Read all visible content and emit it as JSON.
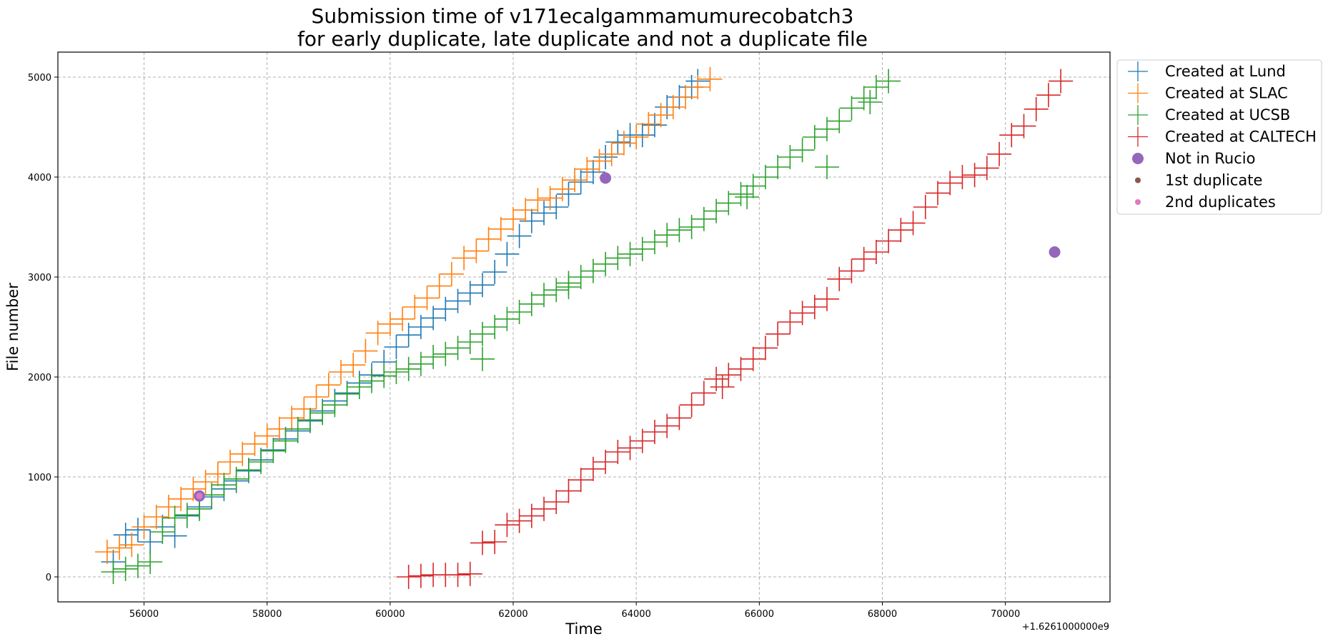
{
  "chart_data": {
    "type": "scatter",
    "title_line1": "Submission time of v171ecalgammamumurecobatch3",
    "title_line2": "for early duplicate, late duplicate and not a duplicate file",
    "xlabel": "Time",
    "ylabel": "File number",
    "x_offset_label": "+1.6261000000e9",
    "x_offset": 1626100000,
    "xlim": [
      54600,
      71700
    ],
    "ylim": [
      -250,
      5250
    ],
    "x_ticks": [
      56000,
      58000,
      60000,
      62000,
      64000,
      66000,
      68000,
      70000
    ],
    "y_ticks": [
      0,
      1000,
      2000,
      3000,
      4000,
      5000
    ],
    "grid": true,
    "legend_position": "outside-top-right",
    "colors": {
      "Lund": "#1f77b4",
      "SLAC": "#ff7f0e",
      "UCSB": "#2ca02c",
      "CALTECH": "#d62728",
      "not_in_rucio": "#9467bd",
      "first_duplicate": "#8c564b",
      "second_duplicate": "#e377c2"
    },
    "series": [
      {
        "name": "Created at Lund",
        "marker": "plus",
        "color": "#1f77b4",
        "x": [
          55500,
          55700,
          55900,
          56100,
          56300,
          56500,
          56700,
          56900,
          57100,
          57300,
          57500,
          57700,
          57900,
          58100,
          58300,
          58500,
          58700,
          58900,
          59100,
          59300,
          59500,
          59700,
          59900,
          60100,
          60300,
          60500,
          60700,
          60900,
          61100,
          61300,
          61500,
          61700,
          61900,
          62100,
          62300,
          62500,
          62700,
          62900,
          63100,
          63300,
          63500,
          63700,
          63900,
          64100,
          64300,
          64500,
          64700,
          64900,
          65000
        ],
        "y": [
          150,
          420,
          470,
          350,
          500,
          410,
          610,
          700,
          800,
          880,
          960,
          1060,
          1170,
          1270,
          1380,
          1460,
          1560,
          1660,
          1760,
          1840,
          1940,
          2020,
          2150,
          2300,
          2420,
          2500,
          2590,
          2680,
          2760,
          2840,
          2920,
          3050,
          3230,
          3410,
          3560,
          3640,
          3700,
          3830,
          3950,
          4050,
          4200,
          4350,
          4420,
          4420,
          4520,
          4700,
          4800,
          4900,
          4960
        ]
      },
      {
        "name": "Created at SLAC",
        "marker": "plus",
        "color": "#ff7f0e",
        "x": [
          55400,
          55600,
          55800,
          56000,
          56200,
          56400,
          56600,
          56800,
          57000,
          57200,
          57400,
          57600,
          57800,
          58000,
          58200,
          58400,
          58600,
          58800,
          59000,
          59200,
          59400,
          59600,
          59800,
          60000,
          60200,
          60400,
          60600,
          60800,
          61000,
          61200,
          61400,
          61600,
          61800,
          62000,
          62200,
          62400,
          62600,
          62800,
          63000,
          63200,
          63400,
          63600,
          63800,
          64000,
          64200,
          64400,
          64600,
          64800,
          65000,
          65200
        ],
        "y": [
          250,
          290,
          320,
          500,
          600,
          700,
          780,
          880,
          950,
          1030,
          1150,
          1230,
          1330,
          1410,
          1480,
          1590,
          1680,
          1800,
          1920,
          2050,
          2120,
          2260,
          2440,
          2530,
          2580,
          2700,
          2790,
          2910,
          3030,
          3190,
          3260,
          3380,
          3480,
          3580,
          3670,
          3770,
          3790,
          3880,
          3970,
          4080,
          4160,
          4230,
          4340,
          4400,
          4530,
          4620,
          4700,
          4800,
          4900,
          4980
        ]
      },
      {
        "name": "Created at UCSB",
        "marker": "plus",
        "color": "#2ca02c",
        "x": [
          55500,
          55700,
          55900,
          56100,
          56300,
          56500,
          56700,
          56900,
          57100,
          57300,
          57500,
          57700,
          57900,
          58100,
          58300,
          58500,
          58700,
          58900,
          59100,
          59300,
          59500,
          59700,
          59900,
          60100,
          60300,
          60500,
          60700,
          60900,
          61100,
          61300,
          61500,
          61700,
          61900,
          62100,
          62300,
          62500,
          62700,
          62900,
          63100,
          63300,
          63500,
          63700,
          63900,
          64100,
          64300,
          64500,
          64700,
          64900,
          65100,
          65300,
          65500,
          65700,
          65900,
          66100,
          66300,
          66500,
          66700,
          66900,
          67100,
          67300,
          67500,
          67700,
          67900,
          68100,
          61500,
          62900,
          65800,
          67100,
          67800
        ],
        "y": [
          50,
          80,
          110,
          150,
          450,
          590,
          620,
          680,
          820,
          920,
          980,
          1070,
          1150,
          1260,
          1360,
          1480,
          1570,
          1640,
          1720,
          1830,
          1900,
          1960,
          2010,
          2050,
          2080,
          2130,
          2200,
          2230,
          2290,
          2350,
          2430,
          2500,
          2580,
          2650,
          2730,
          2820,
          2870,
          2940,
          3000,
          3060,
          3130,
          3190,
          3230,
          3280,
          3350,
          3420,
          3470,
          3500,
          3580,
          3660,
          3740,
          3830,
          3910,
          4000,
          4100,
          4200,
          4270,
          4400,
          4480,
          4560,
          4690,
          4790,
          4900,
          4960,
          2180,
          2900,
          3800,
          4100,
          4750
        ]
      },
      {
        "name": "Created at CALTECH",
        "marker": "plus",
        "color": "#d62728",
        "x": [
          60300,
          60500,
          60700,
          60900,
          61100,
          61300,
          61500,
          61700,
          61900,
          62100,
          62300,
          62500,
          62700,
          62900,
          63100,
          63300,
          63500,
          63700,
          63900,
          64100,
          64300,
          64500,
          64700,
          64900,
          65100,
          65300,
          65500,
          65700,
          65900,
          66100,
          66300,
          66500,
          66700,
          66900,
          67100,
          67300,
          67500,
          67700,
          67900,
          68100,
          68300,
          68500,
          68700,
          68900,
          69100,
          69300,
          69500,
          69700,
          69900,
          70100,
          70300,
          70500,
          70700,
          70900,
          65400
        ],
        "y": [
          0,
          10,
          20,
          20,
          20,
          30,
          340,
          350,
          520,
          560,
          610,
          680,
          750,
          860,
          970,
          1080,
          1150,
          1250,
          1290,
          1360,
          1450,
          1510,
          1590,
          1720,
          1840,
          1980,
          2020,
          2080,
          2180,
          2290,
          2430,
          2550,
          2640,
          2700,
          2780,
          2980,
          3060,
          3180,
          3250,
          3360,
          3470,
          3540,
          3700,
          3840,
          3940,
          4000,
          4020,
          4090,
          4230,
          4420,
          4510,
          4680,
          4820,
          4960,
          1900
        ]
      },
      {
        "name": "Not in Rucio",
        "marker": "circle",
        "color": "#9467bd",
        "x": [
          56900,
          63500,
          70800
        ],
        "y": [
          810,
          3990,
          3250
        ]
      },
      {
        "name": "1st duplicate",
        "marker": "circle-small",
        "color": "#8c564b",
        "x": [],
        "y": []
      },
      {
        "name": "2nd duplicates",
        "marker": "circle-small",
        "color": "#e377c2",
        "x": [
          56900
        ],
        "y": [
          810
        ]
      }
    ]
  }
}
